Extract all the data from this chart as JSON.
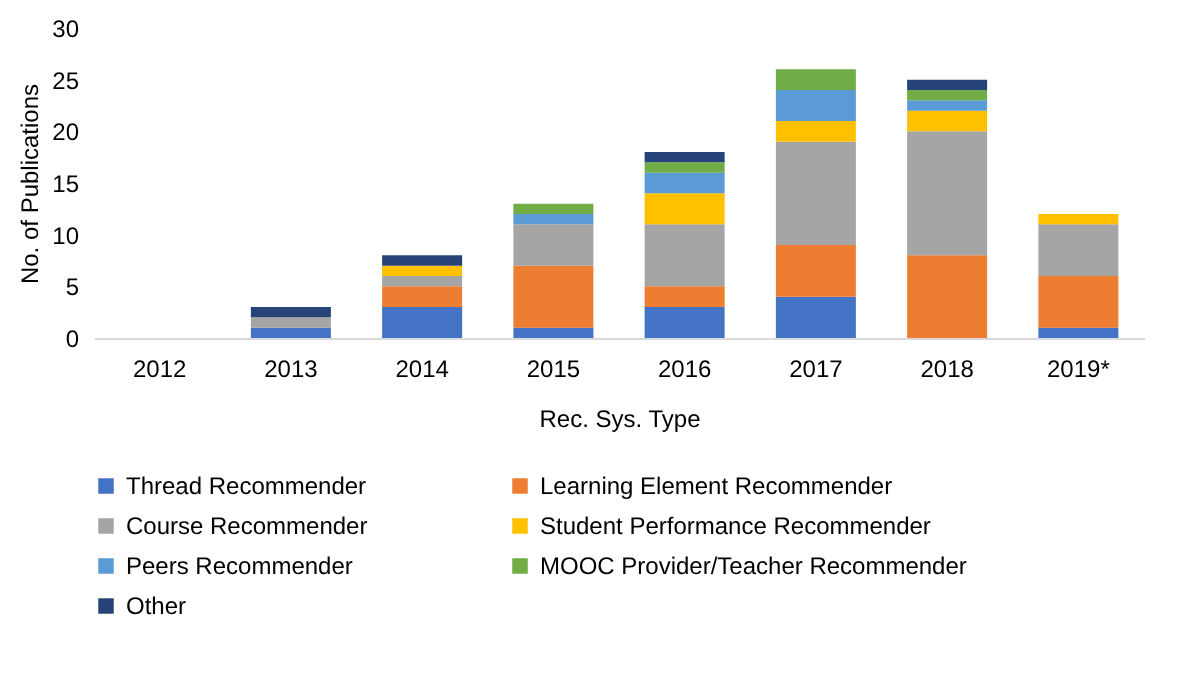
{
  "chart_data": {
    "type": "bar",
    "stacked": true,
    "xlabel": "Rec. Sys. Type",
    "ylabel": "No. of Publications",
    "categories": [
      "2012",
      "2013",
      "2014",
      "2015",
      "2016",
      "2017",
      "2018",
      "2019*"
    ],
    "series": [
      {
        "name": "Thread Recommender",
        "color": "#4472c4",
        "values": [
          0,
          1,
          3,
          1,
          3,
          4,
          0,
          1
        ]
      },
      {
        "name": "Learning Element Recommender",
        "color": "#ed7d31",
        "values": [
          0,
          0,
          2,
          6,
          2,
          5,
          8,
          5
        ]
      },
      {
        "name": "Course Recommender",
        "color": "#a5a5a5",
        "values": [
          0,
          1,
          1,
          4,
          6,
          10,
          12,
          5
        ]
      },
      {
        "name": "Student Performance Recommender",
        "color": "#ffc000",
        "values": [
          0,
          0,
          1,
          0,
          3,
          2,
          2,
          1
        ]
      },
      {
        "name": "Peers Recommender",
        "color": "#5b9bd5",
        "values": [
          0,
          0,
          0,
          1,
          2,
          3,
          1,
          0
        ]
      },
      {
        "name": "MOOC Provider/Teacher Recommender",
        "color": "#70ad47",
        "values": [
          0,
          0,
          0,
          1,
          1,
          2,
          1,
          0
        ]
      },
      {
        "name": "Other",
        "color": "#264478",
        "values": [
          0,
          1,
          1,
          0,
          1,
          0,
          1,
          0
        ]
      }
    ],
    "ylim": [
      0,
      30
    ],
    "yticks": [
      0,
      5,
      10,
      15,
      20,
      25,
      30
    ],
    "grid": false,
    "legend": "bottom"
  }
}
